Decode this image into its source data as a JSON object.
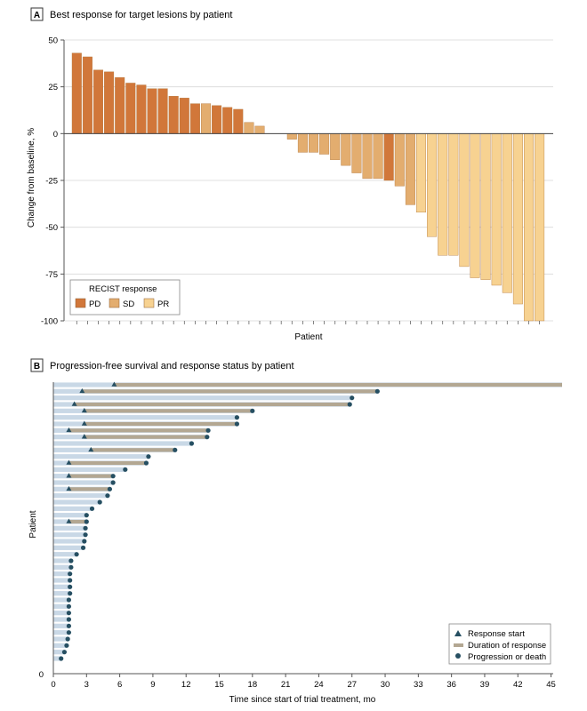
{
  "chart_data": [
    {
      "panel_letter": "A",
      "type": "bar",
      "title": "Best response for target lesions by patient",
      "xlabel": "Patient",
      "ylabel": "Change from baseline, %",
      "ylim": [
        -100,
        50
      ],
      "yticks": [
        50,
        25,
        0,
        -25,
        -50,
        -75,
        -100
      ],
      "grid": true,
      "legend": {
        "title": "RECIST response",
        "placement": "bottom-left",
        "entries": [
          {
            "key": "PD",
            "label": "PD"
          },
          {
            "key": "SD",
            "label": "SD"
          },
          {
            "key": "PR",
            "label": "PR"
          }
        ]
      },
      "colors": {
        "PD": "#d1773a",
        "SD": "#e3ad6f",
        "PR": "#f7d291"
      },
      "values": [
        43,
        41,
        34,
        33,
        30,
        27,
        26,
        24,
        24,
        20,
        19,
        16,
        16,
        15,
        14,
        13,
        6,
        4,
        0,
        0,
        -3,
        -10,
        -10,
        -11,
        -14,
        -17,
        -21,
        -24,
        -24,
        -25,
        -28,
        -38,
        -42,
        -55,
        -65,
        -65,
        -71,
        -77,
        -78,
        -81,
        -85,
        -91,
        -100,
        -100
      ],
      "responses": [
        "PD",
        "PD",
        "PD",
        "PD",
        "PD",
        "PD",
        "PD",
        "PD",
        "PD",
        "PD",
        "PD",
        "PD",
        "SD",
        "PD",
        "PD",
        "PD",
        "SD",
        "SD",
        "SD",
        "SD",
        "SD",
        "SD",
        "SD",
        "SD",
        "SD",
        "SD",
        "SD",
        "SD",
        "SD",
        "PD",
        "SD",
        "SD",
        "PR",
        "PR",
        "PR",
        "PR",
        "PR",
        "PR",
        "PR",
        "PR",
        "PR",
        "PR",
        "PR",
        "PR"
      ]
    },
    {
      "panel_letter": "B",
      "type": "swimmer",
      "title": "Progression-free survival and response status by patient",
      "xlabel": "Time since start of trial treatment, mo",
      "ylabel": "Patient",
      "xlim": [
        0,
        46
      ],
      "xticks": [
        0,
        3,
        6,
        9,
        12,
        15,
        18,
        21,
        24,
        27,
        30,
        33,
        36,
        39,
        42,
        45
      ],
      "y_origin_label": "0",
      "legend": {
        "placement": "bottom-right",
        "entries": [
          {
            "key": "response_start",
            "label": "Response start"
          },
          {
            "key": "duration",
            "label": "Duration of response"
          },
          {
            "key": "progression",
            "label": "Progression or death"
          }
        ]
      },
      "colors": {
        "pfs_bar": "#c9d8e6",
        "duration": "#b3a792",
        "marker": "#264f62"
      },
      "patients": [
        {
          "pfs": 46,
          "response_start": 5.5,
          "response_end": 46,
          "event": false
        },
        {
          "pfs": 29.3,
          "response_start": 2.6,
          "response_end": 29.3,
          "event": true
        },
        {
          "pfs": 27.0,
          "response_start": null,
          "response_end": null,
          "event": true
        },
        {
          "pfs": 26.8,
          "response_start": 1.9,
          "response_end": 26.8,
          "event": true
        },
        {
          "pfs": 18.0,
          "response_start": 2.8,
          "response_end": 18.0,
          "event": true
        },
        {
          "pfs": 16.6,
          "response_start": null,
          "response_end": null,
          "event": true
        },
        {
          "pfs": 16.6,
          "response_start": 2.8,
          "response_end": 16.6,
          "event": true
        },
        {
          "pfs": 14.0,
          "response_start": 1.4,
          "response_end": 14.0,
          "event": true
        },
        {
          "pfs": 13.9,
          "response_start": 2.8,
          "response_end": 13.9,
          "event": true
        },
        {
          "pfs": 12.5,
          "response_start": null,
          "response_end": null,
          "event": true
        },
        {
          "pfs": 11.0,
          "response_start": 3.4,
          "response_end": 11.0,
          "event": true
        },
        {
          "pfs": 8.6,
          "response_start": null,
          "response_end": null,
          "event": true
        },
        {
          "pfs": 8.4,
          "response_start": 1.4,
          "response_end": 8.4,
          "event": true
        },
        {
          "pfs": 6.5,
          "response_start": null,
          "response_end": null,
          "event": true
        },
        {
          "pfs": 5.4,
          "response_start": 1.4,
          "response_end": 5.4,
          "event": true
        },
        {
          "pfs": 5.4,
          "response_start": null,
          "response_end": null,
          "event": true
        },
        {
          "pfs": 5.1,
          "response_start": 1.4,
          "response_end": 5.1,
          "event": true
        },
        {
          "pfs": 4.9,
          "response_start": null,
          "response_end": null,
          "event": true
        },
        {
          "pfs": 4.2,
          "response_start": null,
          "response_end": null,
          "event": true
        },
        {
          "pfs": 3.5,
          "response_start": null,
          "response_end": null,
          "event": true
        },
        {
          "pfs": 3.0,
          "response_start": null,
          "response_end": null,
          "event": true
        },
        {
          "pfs": 3.0,
          "response_start": 1.4,
          "response_end": 3.0,
          "event": true
        },
        {
          "pfs": 2.9,
          "response_start": null,
          "response_end": null,
          "event": true
        },
        {
          "pfs": 2.9,
          "response_start": null,
          "response_end": null,
          "event": true
        },
        {
          "pfs": 2.8,
          "response_start": null,
          "response_end": null,
          "event": true
        },
        {
          "pfs": 2.7,
          "response_start": null,
          "response_end": null,
          "event": true
        },
        {
          "pfs": 2.1,
          "response_start": null,
          "response_end": null,
          "event": true
        },
        {
          "pfs": 1.6,
          "response_start": null,
          "response_end": null,
          "event": true
        },
        {
          "pfs": 1.6,
          "response_start": null,
          "response_end": null,
          "event": true
        },
        {
          "pfs": 1.5,
          "response_start": null,
          "response_end": null,
          "event": true
        },
        {
          "pfs": 1.5,
          "response_start": null,
          "response_end": null,
          "event": true
        },
        {
          "pfs": 1.5,
          "response_start": null,
          "response_end": null,
          "event": true
        },
        {
          "pfs": 1.5,
          "response_start": null,
          "response_end": null,
          "event": true
        },
        {
          "pfs": 1.4,
          "response_start": null,
          "response_end": null,
          "event": true
        },
        {
          "pfs": 1.4,
          "response_start": null,
          "response_end": null,
          "event": true
        },
        {
          "pfs": 1.4,
          "response_start": null,
          "response_end": null,
          "event": true
        },
        {
          "pfs": 1.4,
          "response_start": null,
          "response_end": null,
          "event": true
        },
        {
          "pfs": 1.4,
          "response_start": null,
          "response_end": null,
          "event": true
        },
        {
          "pfs": 1.4,
          "response_start": null,
          "response_end": null,
          "event": true
        },
        {
          "pfs": 1.3,
          "response_start": null,
          "response_end": null,
          "event": true
        },
        {
          "pfs": 1.2,
          "response_start": null,
          "response_end": null,
          "event": true
        },
        {
          "pfs": 1.0,
          "response_start": null,
          "response_end": null,
          "event": true
        },
        {
          "pfs": 0.7,
          "response_start": null,
          "response_end": null,
          "event": true
        }
      ]
    }
  ]
}
